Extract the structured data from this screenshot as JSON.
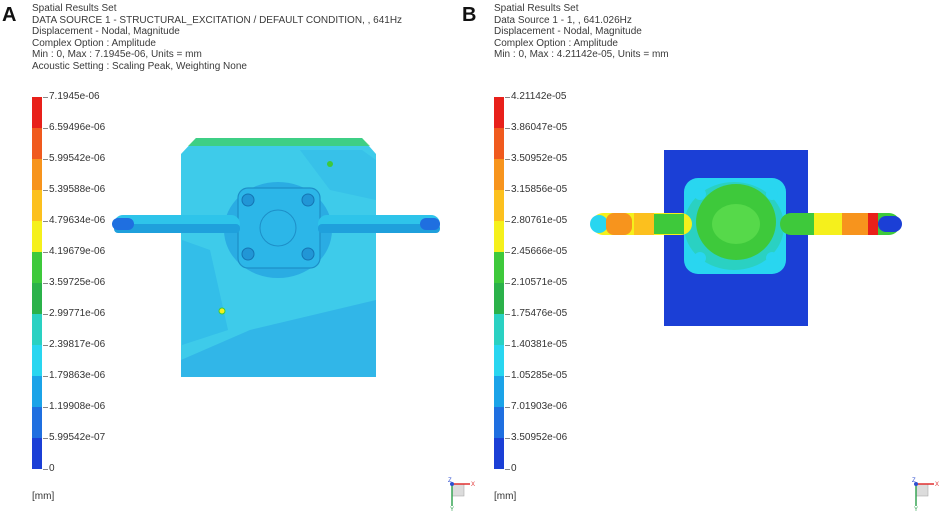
{
  "panel_a": {
    "letter": "A",
    "header": [
      "Spatial Results Set",
      "DATA SOURCE 1 - STRUCTURAL_EXCITATION / DEFAULT CONDITION, , 641Hz",
      "Displacement - Nodal, Magnitude",
      "Complex Option : Amplitude",
      "Min : 0, Max : 7.1945e-06, Units = mm",
      "Acoustic Setting : Scaling Peak, Weighting None"
    ],
    "scale_labels": [
      "7.1945e-06",
      "6.59496e-06",
      "5.99542e-06",
      "5.39588e-06",
      "4.79634e-06",
      "4.19679e-06",
      "3.59725e-06",
      "2.99771e-06",
      "2.39817e-06",
      "1.79863e-06",
      "1.19908e-06",
      "5.99542e-07",
      "0"
    ],
    "unit": "[mm]"
  },
  "panel_b": {
    "letter": "B",
    "header": [
      "Spatial Results Set",
      "Data Source 1 - 1, , 641.026Hz",
      "Displacement - Nodal, Magnitude",
      "Complex Option : Amplitude",
      "Min : 0, Max : 4.21142e-05, Units = mm"
    ],
    "scale_labels": [
      "4.21142e-05",
      "3.86047e-05",
      "3.50952e-05",
      "3.15856e-05",
      "2.80761e-05",
      "2.45666e-05",
      "2.10571e-05",
      "1.75476e-05",
      "1.40381e-05",
      "1.05285e-05",
      "7.01903e-06",
      "3.50952e-06",
      "0"
    ],
    "unit": "[mm]"
  },
  "scale_colors": [
    "#e8201a",
    "#f05a1e",
    "#f7941d",
    "#fcc01e",
    "#f5f01c",
    "#3ec93b",
    "#2bb24a",
    "#2ad1c2",
    "#29d6f0",
    "#1ba3e8",
    "#1f6fe0",
    "#1b3fd6"
  ],
  "triad": {
    "x": "X",
    "y": "Y",
    "z": "Z"
  }
}
